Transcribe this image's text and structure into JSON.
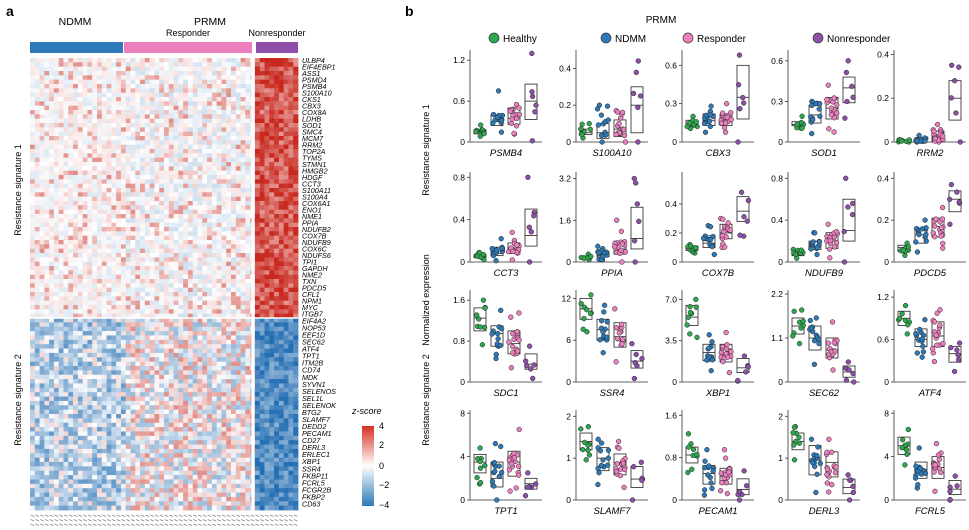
{
  "panel_a": {
    "letter": "a",
    "group_ndmm": "NDMM",
    "group_prmm": "PRMM",
    "sub_responder": "Responder",
    "sub_nonresponder": "Nonresponder",
    "colors": {
      "ndmm": "#2e7ab8",
      "responder": "#ee7fbf",
      "nonresponder": "#8e4fa8",
      "high": "#d7301f",
      "low": "#2c7bb6"
    },
    "sig1_label": "Resistance signature 1",
    "sig2_label": "Resistance signature 2",
    "sig1_genes": [
      "ULBP4",
      "EIF4EBP1",
      "ASS1",
      "PSMD4",
      "PSMB4",
      "S100A10",
      "CKS1",
      "CBX3",
      "COX8A",
      "LDHB",
      "SOD1",
      "SMC4",
      "MCM7",
      "RRM2",
      "TOP2A",
      "TYMS",
      "STMN1",
      "HMGB2",
      "HDGF",
      "CCT3",
      "S100A11",
      "S100A4",
      "COX6A1",
      "ENO1",
      "NME1",
      "PPIA",
      "NDUFB2",
      "COX7B",
      "NDUFB9",
      "COX6C",
      "NDUFS6",
      "TPI1",
      "GAPDH",
      "NME2",
      "TXN",
      "PDCD5",
      "CFL1",
      "NPM1",
      "MYC",
      "ITGB7"
    ],
    "sig2_genes": [
      "EIF4A2",
      "NOP53",
      "EEF1D",
      "SEC62",
      "ATF4",
      "TPT1",
      "ITM2B",
      "CD74",
      "MDK",
      "SYVN1",
      "SELENOS",
      "SEL1L",
      "SELENOK",
      "BTG2",
      "SLAMF7",
      "DEDD2",
      "PECAM1",
      "CD27",
      "DERL3",
      "ERLEC1",
      "XBP1",
      "SSR4",
      "FKBP11",
      "FCRL5",
      "FCGR2B",
      "FKBP2",
      "CD63"
    ],
    "legend": {
      "title": "z-score",
      "ticks": [
        "4",
        "2",
        "0",
        "−2",
        "−4"
      ]
    }
  },
  "panel_b": {
    "letter": "b",
    "prmm_label": "PRMM",
    "legend": [
      {
        "label": "Healthy",
        "color": "#2ea84f"
      },
      {
        "label": "NDMM",
        "color": "#2e7ab8"
      },
      {
        "label": "Responder",
        "color": "#ee7fbf"
      },
      {
        "label": "Nonresponder",
        "color": "#8e4fa8"
      }
    ],
    "ylabel": "Normalized expression",
    "row_labels": [
      "Resistance signature 1",
      "Resistance signature 2"
    ]
  },
  "chart_data": [
    {
      "type": "scatter",
      "gene": "PSMB4",
      "ylim": [
        0,
        1.35
      ],
      "yticks": [
        "0.6",
        "1.2"
      ],
      "ytick_values": [
        0.6,
        1.2
      ],
      "groups": [
        "Healthy",
        "NDMM",
        "Responder",
        "Nonresponder"
      ],
      "medians": [
        0.14,
        0.3,
        0.35,
        0.6
      ],
      "box_low": [
        0.12,
        0.24,
        0.26,
        0.33
      ],
      "box_high": [
        0.18,
        0.4,
        0.5,
        0.85
      ],
      "max": [
        0.25,
        0.75,
        0.55,
        1.3
      ]
    },
    {
      "type": "scatter",
      "gene": "S100A10",
      "ylim": [
        0,
        0.5
      ],
      "yticks": [
        "0.2",
        "0.4"
      ],
      "ytick_values": [
        0.2,
        0.4
      ],
      "groups": [
        "Healthy",
        "NDMM",
        "Responder",
        "Nonresponder"
      ],
      "medians": [
        0.05,
        0.05,
        0.07,
        0.2
      ],
      "box_low": [
        0.04,
        0.02,
        0.03,
        0.05
      ],
      "box_high": [
        0.07,
        0.1,
        0.12,
        0.3
      ],
      "max": [
        0.1,
        0.2,
        0.17,
        0.44
      ]
    },
    {
      "type": "scatter",
      "gene": "CBX3",
      "ylim": [
        0,
        0.72
      ],
      "yticks": [
        "0.3",
        "0.6"
      ],
      "ytick_values": [
        0.3,
        0.6
      ],
      "groups": [
        "Healthy",
        "NDMM",
        "Responder",
        "Nonresponder"
      ],
      "medians": [
        0.15,
        0.17,
        0.16,
        0.35
      ],
      "box_low": [
        0.13,
        0.13,
        0.13,
        0.18
      ],
      "box_high": [
        0.17,
        0.22,
        0.22,
        0.6
      ],
      "max": [
        0.2,
        0.28,
        0.3,
        0.68
      ]
    },
    {
      "type": "scatter",
      "gene": "SOD1",
      "ylim": [
        0,
        0.68
      ],
      "yticks": [
        "0.3",
        "0.6"
      ],
      "ytick_values": [
        0.3,
        0.6
      ],
      "groups": [
        "Healthy",
        "NDMM",
        "Responder",
        "Nonresponder"
      ],
      "medians": [
        0.13,
        0.2,
        0.25,
        0.4
      ],
      "box_low": [
        0.12,
        0.14,
        0.17,
        0.29
      ],
      "box_high": [
        0.15,
        0.27,
        0.33,
        0.48
      ],
      "max": [
        0.19,
        0.3,
        0.42,
        0.6
      ]
    },
    {
      "type": "scatter",
      "gene": "RRM2",
      "ylim": [
        0,
        0.42
      ],
      "yticks": [
        "0.2",
        "0.4"
      ],
      "ytick_values": [
        0.2,
        0.4
      ],
      "groups": [
        "Healthy",
        "NDMM",
        "Responder",
        "Nonresponder"
      ],
      "medians": [
        0.0,
        0.01,
        0.02,
        0.2
      ],
      "box_low": [
        0.0,
        0.0,
        0.0,
        0.1
      ],
      "box_high": [
        0.01,
        0.02,
        0.05,
        0.28
      ],
      "max": [
        0.01,
        0.03,
        0.08,
        0.35
      ]
    },
    {
      "type": "scatter",
      "gene": "CCT3",
      "ylim": [
        0,
        0.85
      ],
      "yticks": [
        "0.4",
        "0.8"
      ],
      "ytick_values": [
        0.4,
        0.8
      ],
      "groups": [
        "Healthy",
        "NDMM",
        "Responder",
        "Nonresponder"
      ],
      "medians": [
        0.05,
        0.08,
        0.12,
        0.25
      ],
      "box_low": [
        0.04,
        0.06,
        0.08,
        0.15
      ],
      "box_high": [
        0.07,
        0.14,
        0.18,
        0.5
      ],
      "max": [
        0.09,
        0.22,
        0.28,
        0.8
      ]
    },
    {
      "type": "scatter",
      "gene": "PPIA",
      "ylim": [
        0,
        3.45
      ],
      "yticks": [
        "1.6",
        "3.2"
      ],
      "ytick_values": [
        1.6,
        3.2
      ],
      "groups": [
        "Healthy",
        "NDMM",
        "Responder",
        "Nonresponder"
      ],
      "medians": [
        0.18,
        0.25,
        0.5,
        0.9
      ],
      "box_low": [
        0.14,
        0.2,
        0.3,
        0.5
      ],
      "box_high": [
        0.22,
        0.4,
        0.8,
        2.1
      ],
      "max": [
        0.3,
        0.6,
        1.6,
        3.2
      ]
    },
    {
      "type": "scatter",
      "gene": "COX7B",
      "ylim": [
        0,
        0.62
      ],
      "yticks": [
        "0.2",
        "0.4"
      ],
      "ytick_values": [
        0.2,
        0.4
      ],
      "groups": [
        "Healthy",
        "NDMM",
        "Responder",
        "Nonresponder"
      ],
      "medians": [
        0.09,
        0.13,
        0.2,
        0.35
      ],
      "box_low": [
        0.08,
        0.1,
        0.16,
        0.28
      ],
      "box_high": [
        0.11,
        0.18,
        0.26,
        0.45
      ],
      "max": [
        0.12,
        0.25,
        0.3,
        0.48
      ]
    },
    {
      "type": "scatter",
      "gene": "NDUFB9",
      "ylim": [
        0,
        0.86
      ],
      "yticks": [
        "0.4",
        "0.8"
      ],
      "ytick_values": [
        0.4,
        0.8
      ],
      "groups": [
        "Healthy",
        "NDMM",
        "Responder",
        "Nonresponder"
      ],
      "medians": [
        0.08,
        0.15,
        0.2,
        0.3
      ],
      "box_low": [
        0.06,
        0.12,
        0.13,
        0.2
      ],
      "box_high": [
        0.1,
        0.2,
        0.28,
        0.6
      ],
      "max": [
        0.12,
        0.28,
        0.36,
        0.8
      ]
    },
    {
      "type": "scatter",
      "gene": "PDCD5",
      "ylim": [
        0,
        0.43
      ],
      "yticks": [
        "0.2",
        "0.4"
      ],
      "ytick_values": [
        0.2,
        0.4
      ],
      "groups": [
        "Healthy",
        "NDMM",
        "Responder",
        "Nonresponder"
      ],
      "medians": [
        0.07,
        0.13,
        0.17,
        0.3
      ],
      "box_low": [
        0.05,
        0.09,
        0.12,
        0.24
      ],
      "box_high": [
        0.08,
        0.16,
        0.21,
        0.34
      ],
      "max": [
        0.09,
        0.2,
        0.26,
        0.37
      ]
    },
    {
      "type": "scatter",
      "gene": "SDC1",
      "ylim": [
        0,
        1.8
      ],
      "yticks": [
        "0.8",
        "1.6"
      ],
      "ytick_values": [
        0.8,
        1.6
      ],
      "groups": [
        "Healthy",
        "NDMM",
        "Responder",
        "Nonresponder"
      ],
      "medians": [
        1.25,
        0.95,
        0.75,
        0.35
      ],
      "box_low": [
        1.0,
        0.7,
        0.55,
        0.25
      ],
      "box_high": [
        1.45,
        1.1,
        1.0,
        0.55
      ],
      "max": [
        1.6,
        1.4,
        1.35,
        0.7
      ]
    },
    {
      "type": "scatter",
      "gene": "SSR4",
      "ylim": [
        0,
        13.2
      ],
      "yticks": [
        "6",
        "12"
      ],
      "ytick_values": [
        6,
        12
      ],
      "groups": [
        "Healthy",
        "NDMM",
        "Responder",
        "Nonresponder"
      ],
      "medians": [
        10.5,
        7.5,
        6.5,
        3.0
      ],
      "box_low": [
        9.0,
        6.0,
        5.0,
        2.0
      ],
      "box_high": [
        12.0,
        9.0,
        8.5,
        4.5
      ],
      "max": [
        12.5,
        11.0,
        10.5,
        5.5
      ]
    },
    {
      "type": "scatter",
      "gene": "XBP1",
      "ylim": [
        0,
        7.8
      ],
      "yticks": [
        "3.5",
        "7.0"
      ],
      "ytick_values": [
        3.5,
        7.0
      ],
      "groups": [
        "Healthy",
        "NDMM",
        "Responder",
        "Nonresponder"
      ],
      "medians": [
        5.5,
        2.5,
        2.3,
        1.2
      ],
      "box_low": [
        4.8,
        1.8,
        1.7,
        0.8
      ],
      "box_high": [
        6.5,
        3.2,
        3.2,
        2.0
      ],
      "max": [
        7.0,
        4.0,
        4.2,
        2.2
      ]
    },
    {
      "type": "scatter",
      "gene": "SEC62",
      "ylim": [
        0,
        2.3
      ],
      "yticks": [
        "1.1",
        "2.2"
      ],
      "ytick_values": [
        1.1,
        2.2
      ],
      "groups": [
        "Healthy",
        "NDMM",
        "Responder",
        "Nonresponder"
      ],
      "medians": [
        1.4,
        1.1,
        0.8,
        0.25
      ],
      "box_low": [
        1.2,
        0.8,
        0.6,
        0.12
      ],
      "box_high": [
        1.6,
        1.4,
        1.1,
        0.4
      ],
      "max": [
        1.8,
        1.6,
        1.5,
        0.5
      ]
    },
    {
      "type": "scatter",
      "gene": "ATF4",
      "ylim": [
        0,
        1.3
      ],
      "yticks": [
        "0.6",
        "1.2"
      ],
      "ytick_values": [
        0.6,
        1.2
      ],
      "groups": [
        "Healthy",
        "NDMM",
        "Responder",
        "Nonresponder"
      ],
      "medians": [
        0.9,
        0.6,
        0.65,
        0.4
      ],
      "box_low": [
        0.8,
        0.5,
        0.5,
        0.28
      ],
      "box_high": [
        1.0,
        0.75,
        0.85,
        0.5
      ],
      "max": [
        1.08,
        0.88,
        1.02,
        0.55
      ]
    },
    {
      "type": "scatter",
      "gene": "TPT1",
      "ylim": [
        0,
        8.3
      ],
      "yticks": [
        "4",
        "8"
      ],
      "ytick_values": [
        4,
        8
      ],
      "groups": [
        "Healthy",
        "NDMM",
        "Responder",
        "Nonresponder"
      ],
      "medians": [
        3.5,
        2.0,
        3.5,
        1.5
      ],
      "box_low": [
        2.5,
        1.2,
        2.2,
        1.0
      ],
      "box_high": [
        4.2,
        3.5,
        4.5,
        2.0
      ],
      "max": [
        4.8,
        5.2,
        6.5,
        2.5
      ]
    },
    {
      "type": "scatter",
      "gene": "SLAMF7",
      "ylim": [
        0,
        2.15
      ],
      "yticks": [
        "1",
        "2"
      ],
      "ytick_values": [
        1,
        2
      ],
      "groups": [
        "Healthy",
        "NDMM",
        "Responder",
        "Nonresponder"
      ],
      "medians": [
        1.4,
        1.0,
        0.9,
        0.5
      ],
      "box_low": [
        1.2,
        0.7,
        0.6,
        0.3
      ],
      "box_high": [
        1.6,
        1.25,
        1.1,
        0.8
      ],
      "max": [
        1.75,
        1.45,
        1.4,
        0.9
      ]
    },
    {
      "type": "scatter",
      "gene": "PECAM1",
      "ylim": [
        0,
        1.7
      ],
      "yticks": [
        "0.8",
        "1.6"
      ],
      "ytick_values": [
        0.8,
        1.6
      ],
      "groups": [
        "Healthy",
        "NDMM",
        "Responder",
        "Nonresponder"
      ],
      "medians": [
        0.85,
        0.5,
        0.45,
        0.2
      ],
      "box_low": [
        0.7,
        0.3,
        0.3,
        0.1
      ],
      "box_high": [
        1.0,
        0.65,
        0.6,
        0.4
      ],
      "max": [
        1.25,
        0.95,
        0.95,
        0.55
      ]
    },
    {
      "type": "scatter",
      "gene": "DERL3",
      "ylim": [
        0,
        2.15
      ],
      "yticks": [
        "1",
        "2"
      ],
      "ytick_values": [
        1,
        2
      ],
      "groups": [
        "Healthy",
        "NDMM",
        "Responder",
        "Nonresponder"
      ],
      "medians": [
        1.4,
        0.95,
        0.9,
        0.3
      ],
      "box_low": [
        1.2,
        0.6,
        0.55,
        0.15
      ],
      "box_high": [
        1.6,
        1.3,
        1.15,
        0.5
      ],
      "max": [
        1.75,
        1.45,
        1.45,
        0.6
      ]
    },
    {
      "type": "scatter",
      "gene": "FCRL5",
      "ylim": [
        0,
        8.3
      ],
      "yticks": [
        "4",
        "8"
      ],
      "ytick_values": [
        4,
        8
      ],
      "groups": [
        "Healthy",
        "NDMM",
        "Responder",
        "Nonresponder"
      ],
      "medians": [
        5.0,
        2.8,
        3.0,
        1.0
      ],
      "box_low": [
        4.2,
        2.0,
        2.0,
        0.5
      ],
      "box_high": [
        5.8,
        3.5,
        4.0,
        1.8
      ],
      "max": [
        6.5,
        4.8,
        5.2,
        2.2
      ]
    }
  ]
}
